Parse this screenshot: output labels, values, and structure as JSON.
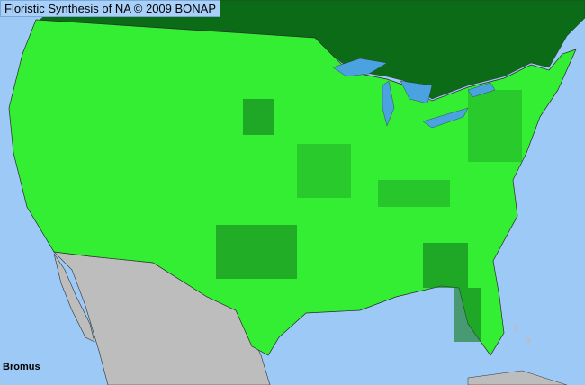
{
  "map": {
    "title": "Floristic Synthesis of NA © 2009 BONAP",
    "taxon": "Bromus",
    "colors": {
      "ocean": "#9cc9f6",
      "canada": "#0b6b17",
      "present": "#33ee33",
      "present_dense": "#127a1c",
      "mexico": "#bdbdbd",
      "lakes": "#4aa3e0",
      "borders": "#333333"
    }
  }
}
